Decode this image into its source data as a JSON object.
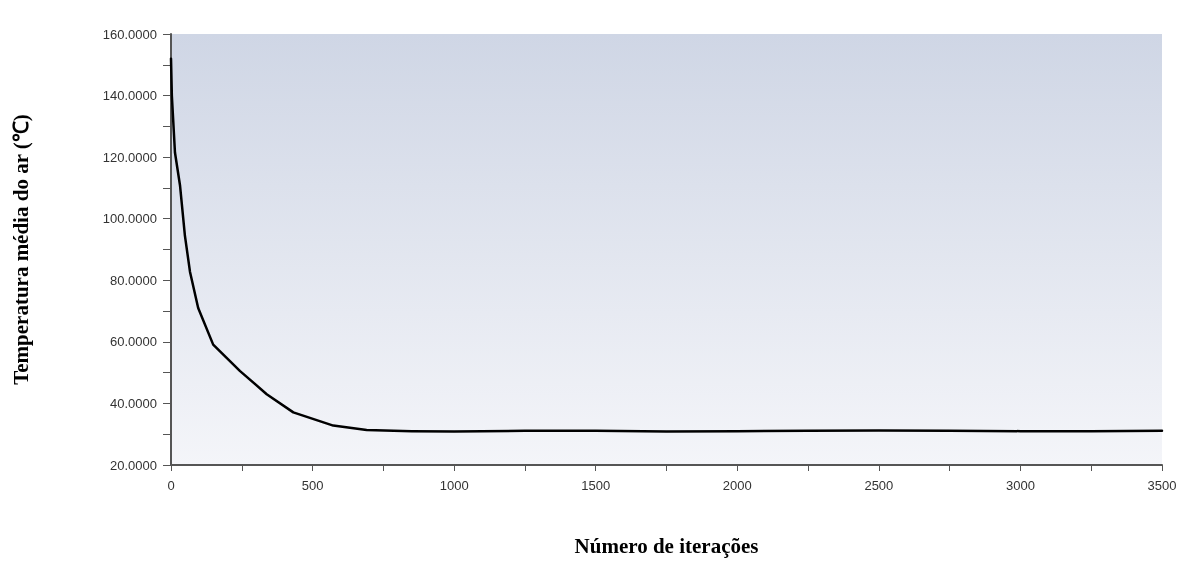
{
  "chart_data": {
    "type": "line",
    "xlabel": "Número de iterações",
    "ylabel": "Temperatura média do ar (℃)",
    "x": [
      0,
      3,
      14,
      32,
      49,
      67,
      96,
      149,
      244,
      338,
      432,
      573,
      691,
      850,
      1000,
      1250,
      1500,
      1750,
      2000,
      2250,
      2500,
      2750,
      3000,
      3250,
      3500
    ],
    "series": [
      {
        "color": "#000000",
        "values": [
          152,
          140,
          121.5,
          110.7,
          94.6,
          82.8,
          71,
          59.1,
          50.5,
          43,
          37.1,
          32.8,
          31.4,
          31,
          30.9,
          31.1,
          31.1,
          30.9,
          31,
          31.1,
          31.2,
          31.1,
          31,
          31,
          31.1
        ]
      }
    ],
    "xlim": [
      0,
      3500
    ],
    "xticks": [
      0,
      {
        "value": 250,
        "label": null
      },
      500,
      {
        "value": 750,
        "label": null
      },
      1000,
      {
        "value": 1250,
        "label": null
      },
      1500,
      {
        "value": 1750,
        "label": null
      },
      2000,
      {
        "value": 2250,
        "label": null
      },
      2500,
      {
        "value": 2750,
        "label": null
      },
      3000,
      {
        "value": 3250,
        "label": null
      },
      3500
    ],
    "ylim": [
      20,
      160
    ],
    "yticks": [
      {
        "value": 20,
        "label": "20.0000"
      },
      {
        "value": 30,
        "label": null
      },
      {
        "value": 40,
        "label": "40.0000"
      },
      {
        "value": 50,
        "label": null
      },
      {
        "value": 60,
        "label": "60.0000"
      },
      {
        "value": 70,
        "label": null
      },
      {
        "value": 80,
        "label": "80.0000"
      },
      {
        "value": 90,
        "label": null
      },
      {
        "value": 100,
        "label": "100.0000"
      },
      {
        "value": 110,
        "label": null
      },
      {
        "value": 120,
        "label": "120.0000"
      },
      {
        "value": 130,
        "label": null
      },
      {
        "value": 140,
        "label": "140.0000"
      },
      {
        "value": 150,
        "label": null
      },
      {
        "value": 160,
        "label": "160.0000"
      }
    ],
    "grid": false,
    "marker": "none",
    "line_style": "solid"
  }
}
